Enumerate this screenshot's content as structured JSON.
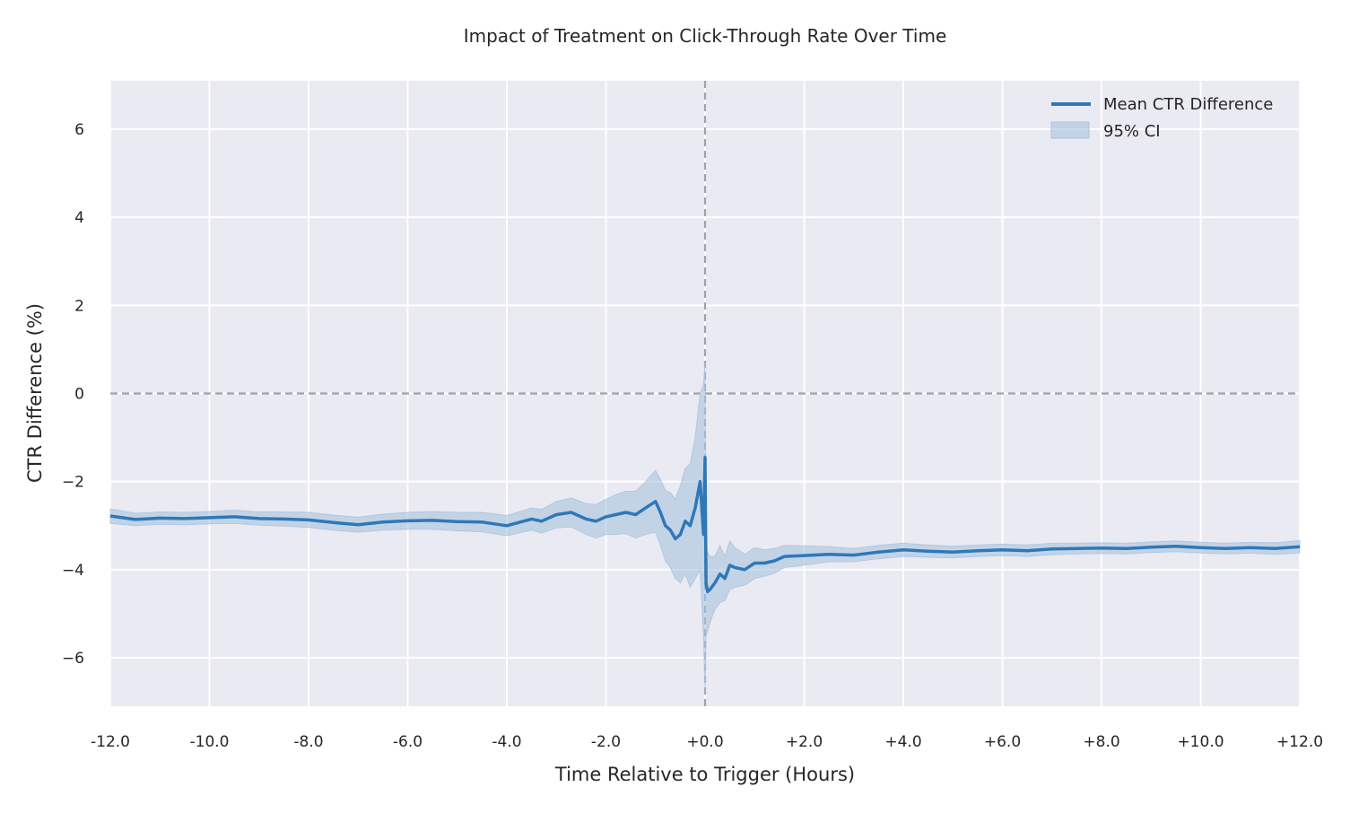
{
  "chart_data": {
    "type": "line",
    "title": "Impact of Treatment on Click-Through Rate Over Time",
    "xlabel": "Time Relative to Trigger (Hours)",
    "ylabel": "CTR Difference (%)",
    "xlim": [
      -12,
      12
    ],
    "ylim": [
      -7.1,
      7.1
    ],
    "x_ticks": [
      -12,
      -10,
      -8,
      -6,
      -4,
      -2,
      0,
      2,
      4,
      6,
      8,
      10,
      12
    ],
    "x_tick_labels": [
      "-12.0",
      "-10.0",
      "-8.0",
      "-6.0",
      "-4.0",
      "-2.0",
      "+0.0",
      "+2.0",
      "+4.0",
      "+6.0",
      "+8.0",
      "+10.0",
      "+12.0"
    ],
    "y_ticks": [
      -6,
      -4,
      -2,
      0,
      2,
      4,
      6
    ],
    "y_tick_labels": [
      "−6",
      "−4",
      "−2",
      "0",
      "2",
      "4",
      "6"
    ],
    "grid": true,
    "legend_position": "top-right",
    "reference_lines": [
      {
        "orientation": "horizontal",
        "value": 0,
        "style": "dashed"
      },
      {
        "orientation": "vertical",
        "value": 0,
        "style": "dashed"
      }
    ],
    "series": [
      {
        "name": "Mean CTR Difference",
        "color": "#2f78b7",
        "x": [
          -12,
          -11.5,
          -11,
          -10.5,
          -10,
          -9.5,
          -9,
          -8.5,
          -8,
          -7.5,
          -7,
          -6.5,
          -6,
          -5.5,
          -5,
          -4.5,
          -4,
          -3.5,
          -3.3,
          -3,
          -2.7,
          -2.4,
          -2.2,
          -2,
          -1.8,
          -1.6,
          -1.4,
          -1.2,
          -1.0,
          -0.9,
          -0.8,
          -0.7,
          -0.6,
          -0.5,
          -0.4,
          -0.3,
          -0.2,
          -0.1,
          -0.03,
          0,
          0.02,
          0.05,
          0.1,
          0.2,
          0.3,
          0.4,
          0.5,
          0.6,
          0.8,
          1.0,
          1.2,
          1.4,
          1.6,
          2,
          2.5,
          3,
          3.5,
          4,
          4.5,
          5,
          5.5,
          6,
          6.5,
          7,
          7.5,
          8,
          8.5,
          9,
          9.5,
          10,
          10.5,
          11,
          11.5,
          12
        ],
        "y": [
          -2.78,
          -2.86,
          -2.83,
          -2.84,
          -2.82,
          -2.8,
          -2.84,
          -2.85,
          -2.87,
          -2.93,
          -2.98,
          -2.92,
          -2.89,
          -2.88,
          -2.91,
          -2.92,
          -3.0,
          -2.85,
          -2.9,
          -2.75,
          -2.7,
          -2.85,
          -2.9,
          -2.8,
          -2.75,
          -2.7,
          -2.75,
          -2.6,
          -2.45,
          -2.7,
          -3.0,
          -3.1,
          -3.3,
          -3.2,
          -2.9,
          -3.0,
          -2.6,
          -2.0,
          -3.2,
          -1.45,
          -4.3,
          -4.5,
          -4.45,
          -4.3,
          -4.1,
          -4.2,
          -3.9,
          -3.95,
          -4.0,
          -3.85,
          -3.85,
          -3.8,
          -3.7,
          -3.68,
          -3.65,
          -3.67,
          -3.6,
          -3.55,
          -3.58,
          -3.6,
          -3.57,
          -3.55,
          -3.57,
          -3.53,
          -3.52,
          -3.51,
          -3.52,
          -3.49,
          -3.47,
          -3.5,
          -3.52,
          -3.5,
          -3.52,
          -3.48
        ]
      },
      {
        "name": "95% CI",
        "type": "area",
        "color": "#a9c3de",
        "x": [
          -12,
          -11.5,
          -11,
          -10.5,
          -10,
          -9.5,
          -9,
          -8.5,
          -8,
          -7.5,
          -7,
          -6.5,
          -6,
          -5.5,
          -5,
          -4.5,
          -4,
          -3.5,
          -3.3,
          -3,
          -2.7,
          -2.4,
          -2.2,
          -2,
          -1.8,
          -1.6,
          -1.4,
          -1.2,
          -1.0,
          -0.9,
          -0.8,
          -0.7,
          -0.6,
          -0.5,
          -0.4,
          -0.3,
          -0.2,
          -0.1,
          -0.03,
          0,
          0.02,
          0.05,
          0.1,
          0.2,
          0.3,
          0.4,
          0.5,
          0.6,
          0.8,
          1.0,
          1.2,
          1.4,
          1.6,
          2,
          2.5,
          3,
          3.5,
          4,
          4.5,
          5,
          5.5,
          6,
          6.5,
          7,
          7.5,
          8,
          8.5,
          9,
          9.5,
          10,
          10.5,
          11,
          11.5,
          12
        ],
        "lower": [
          -2.95,
          -3.0,
          -2.97,
          -2.98,
          -2.96,
          -2.95,
          -2.99,
          -3.01,
          -3.04,
          -3.1,
          -3.15,
          -3.1,
          -3.08,
          -3.08,
          -3.12,
          -3.14,
          -3.23,
          -3.1,
          -3.17,
          -3.05,
          -3.03,
          -3.2,
          -3.28,
          -3.2,
          -3.2,
          -3.18,
          -3.28,
          -3.2,
          -3.15,
          -3.45,
          -3.8,
          -3.95,
          -4.2,
          -4.3,
          -4.1,
          -4.4,
          -4.2,
          -4.0,
          -5.5,
          -6.8,
          -5.5,
          -5.4,
          -5.2,
          -4.9,
          -4.75,
          -4.7,
          -4.45,
          -4.4,
          -4.35,
          -4.2,
          -4.15,
          -4.08,
          -3.95,
          -3.9,
          -3.82,
          -3.82,
          -3.75,
          -3.7,
          -3.72,
          -3.73,
          -3.7,
          -3.68,
          -3.7,
          -3.66,
          -3.64,
          -3.63,
          -3.64,
          -3.61,
          -3.59,
          -3.62,
          -3.64,
          -3.62,
          -3.65,
          -3.62
        ],
        "upper": [
          -2.62,
          -2.72,
          -2.69,
          -2.7,
          -2.68,
          -2.65,
          -2.69,
          -2.69,
          -2.7,
          -2.76,
          -2.81,
          -2.74,
          -2.7,
          -2.68,
          -2.7,
          -2.7,
          -2.77,
          -2.6,
          -2.63,
          -2.45,
          -2.37,
          -2.5,
          -2.52,
          -2.4,
          -2.3,
          -2.22,
          -2.22,
          -2.0,
          -1.75,
          -1.95,
          -2.2,
          -2.25,
          -2.4,
          -2.1,
          -1.7,
          -1.6,
          -1.0,
          0.0,
          0.2,
          0.7,
          -3.5,
          -3.6,
          -3.7,
          -3.7,
          -3.45,
          -3.7,
          -3.35,
          -3.5,
          -3.65,
          -3.5,
          -3.55,
          -3.52,
          -3.45,
          -3.46,
          -3.48,
          -3.52,
          -3.45,
          -3.4,
          -3.44,
          -3.47,
          -3.44,
          -3.42,
          -3.44,
          -3.4,
          -3.4,
          -3.39,
          -3.4,
          -3.37,
          -3.35,
          -3.38,
          -3.4,
          -3.38,
          -3.39,
          -3.34
        ]
      }
    ]
  },
  "legend": {
    "items": [
      {
        "label": "Mean CTR Difference",
        "color": "#2f78b7",
        "kind": "line"
      },
      {
        "label": "95% CI",
        "color": "#a9c3de",
        "kind": "patch"
      }
    ]
  },
  "style": {
    "plot_background": "#eaeaf2",
    "grid_color": "#ffffff",
    "reference_line_color": "#9ca3ab"
  }
}
